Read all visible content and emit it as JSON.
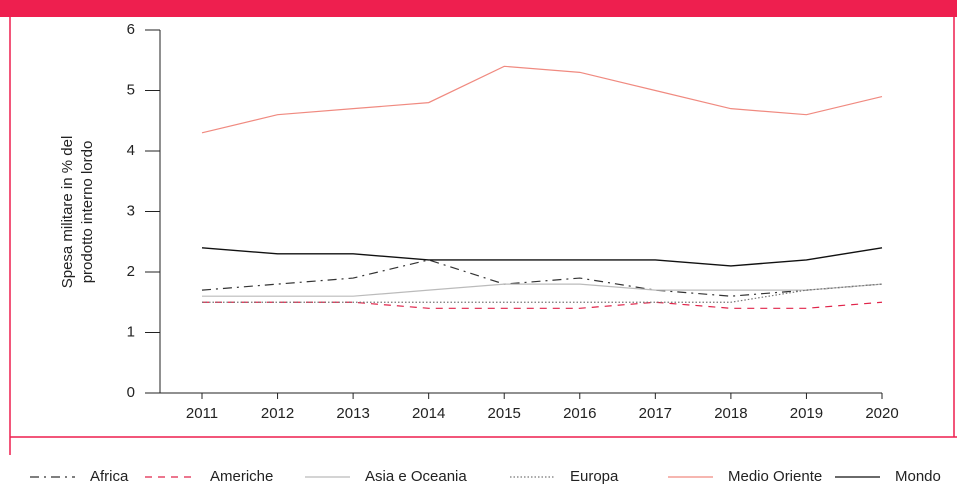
{
  "chart_data": {
    "type": "line",
    "y_label": [
      "Spesa militare in % del",
      "prodotto interno lordo"
    ],
    "categories": [
      "2011",
      "2012",
      "2013",
      "2014",
      "2015",
      "2016",
      "2017",
      "2018",
      "2019",
      "2020"
    ],
    "ylim": [
      0,
      6
    ],
    "yticks": [
      0,
      1,
      2,
      3,
      4,
      5,
      6
    ],
    "grid": false,
    "legend": "bottom",
    "series": [
      {
        "name": "Africa",
        "color": "#333333",
        "dash": "dashdot",
        "values": [
          1.7,
          1.8,
          1.9,
          2.2,
          1.8,
          1.9,
          1.7,
          1.6,
          1.7,
          1.8
        ]
      },
      {
        "name": "Americhe",
        "color": "#e0244a",
        "dash": "dashed",
        "values": [
          1.5,
          1.5,
          1.5,
          1.4,
          1.4,
          1.4,
          1.5,
          1.4,
          1.4,
          1.5
        ]
      },
      {
        "name": "Asia e Oceania",
        "color": "#bbbbbb",
        "dash": "solid",
        "values": [
          1.6,
          1.6,
          1.6,
          1.7,
          1.8,
          1.8,
          1.7,
          1.7,
          1.7,
          1.8
        ]
      },
      {
        "name": "Europa",
        "color": "#777777",
        "dash": "dotted",
        "values": [
          1.5,
          1.5,
          1.5,
          1.5,
          1.5,
          1.5,
          1.5,
          1.5,
          1.7,
          1.8
        ]
      },
      {
        "name": "Medio Oriente",
        "color": "#f08a80",
        "dash": "solid",
        "values": [
          4.3,
          4.6,
          4.7,
          4.8,
          5.4,
          5.3,
          5.0,
          4.7,
          4.6,
          4.9
        ]
      },
      {
        "name": "Mondo",
        "color": "#111111",
        "dash": "solid",
        "values": [
          2.4,
          2.3,
          2.3,
          2.2,
          2.2,
          2.2,
          2.2,
          2.1,
          2.2,
          2.4
        ]
      }
    ]
  }
}
